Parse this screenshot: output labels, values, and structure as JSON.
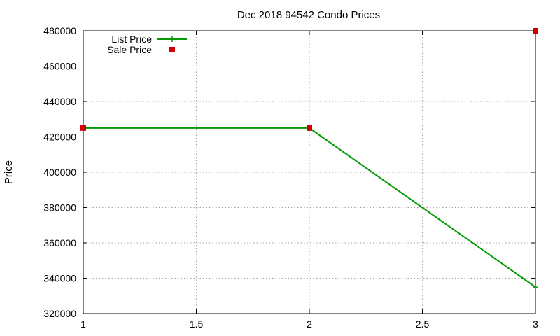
{
  "chart_data": {
    "type": "line",
    "title": "Dec 2018 94542 Condo Prices",
    "xlabel": "",
    "ylabel": "Price",
    "xlim": [
      1,
      3
    ],
    "ylim": [
      320000,
      480000
    ],
    "x_ticks": [
      "1",
      "1.5",
      "2",
      "2.5",
      "3"
    ],
    "y_ticks": [
      "320000",
      "340000",
      "360000",
      "380000",
      "400000",
      "420000",
      "440000",
      "460000",
      "480000"
    ],
    "grid": true,
    "legend_position": "top-left",
    "series": [
      {
        "name": "List Price",
        "style": "line-with-plus-markers",
        "color": "#009900",
        "x": [
          1,
          2,
          3
        ],
        "y": [
          425000,
          425000,
          335000
        ]
      },
      {
        "name": "Sale Price",
        "style": "square-markers",
        "color": "#cc0000",
        "x": [
          1,
          2,
          3
        ],
        "y": [
          425000,
          425000,
          480000
        ]
      }
    ]
  }
}
